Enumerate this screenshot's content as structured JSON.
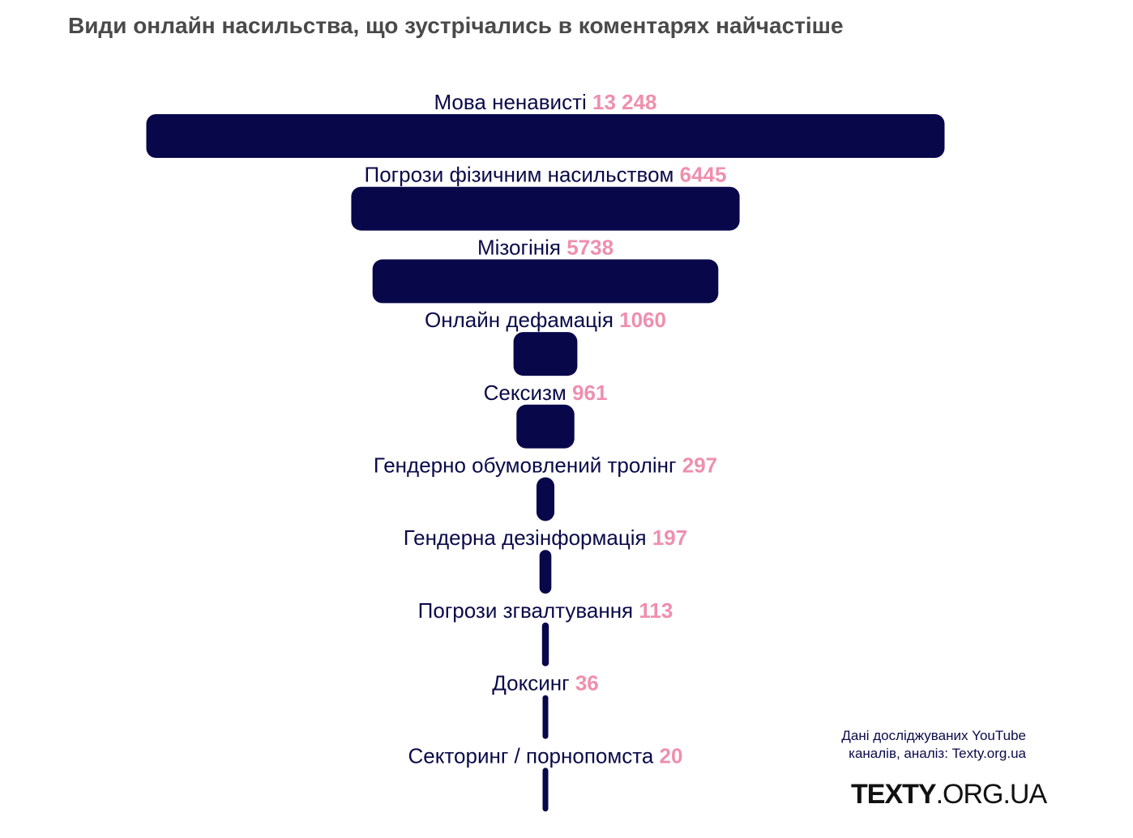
{
  "title": "Види онлайн насильства, що зустрічались в коментарях найчастіше",
  "source_line1": "Дані досліджуваних YouTube",
  "source_line2": "каналів, аналіз: Texty.org.ua",
  "logo_bold": "TEXTY",
  "logo_rest": ".ORG.UA",
  "colors": {
    "bar": "#08074a",
    "value": "#ef8fad",
    "label": "#0a0a4a"
  },
  "chart_data": {
    "type": "bar",
    "orientation": "horizontal-centered",
    "title": "Види онлайн насильства, що зустрічались в коментарях найчастіше",
    "categories": [
      "Мова ненависті",
      "Погрози фізичним насильством",
      "Мізогінія",
      "Онлайн дефамація",
      "Сексизм",
      "Гендерно обумовлений тролінг",
      "Гендерна дезінформація",
      "Погрози згвалтування",
      "Доксинг",
      "Секторинг / порнопомста"
    ],
    "value_labels": [
      "13 248",
      "6445",
      "5738",
      "1060",
      "961",
      "297",
      "197",
      "113",
      "36",
      "20"
    ],
    "values": [
      13248,
      6445,
      5738,
      1060,
      961,
      297,
      197,
      113,
      36,
      20
    ]
  }
}
